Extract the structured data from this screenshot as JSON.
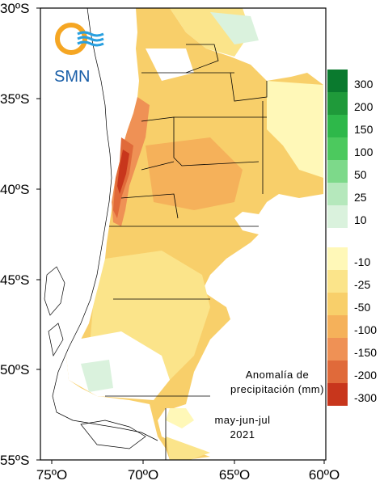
{
  "logo": {
    "text": "SMN"
  },
  "annotation": {
    "line1": "Anomalía de",
    "line2": "precipitación (mm)",
    "line3": "may-jun-jul",
    "line4": "2021"
  },
  "lat_labels": [
    "30ºS",
    "35ºS",
    "40ºS",
    "45ºS",
    "50ºS",
    "55ºS"
  ],
  "lon_labels": [
    "75ºO",
    "70ºO",
    "65ºO",
    "60ºO"
  ],
  "legend": {
    "positive": [
      {
        "label": "300",
        "color": "#0a7a2e"
      },
      {
        "label": "200",
        "color": "#1f9a3a"
      },
      {
        "label": "150",
        "color": "#2eb84a"
      },
      {
        "label": "100",
        "color": "#4cc95e"
      },
      {
        "label": "50",
        "color": "#7dd98a"
      },
      {
        "label": "25",
        "color": "#b5e8bc"
      },
      {
        "label": "10",
        "color": "#daf2dd"
      }
    ],
    "negative": [
      {
        "label": "-10",
        "color": "#fff8b8"
      },
      {
        "label": "-25",
        "color": "#fbe48a"
      },
      {
        "label": "-50",
        "color": "#f8cf6a"
      },
      {
        "label": "-100",
        "color": "#f5b15a"
      },
      {
        "label": "-150",
        "color": "#ef9155"
      },
      {
        "label": "-200",
        "color": "#e06a3a"
      },
      {
        "label": "-300",
        "color": "#c8361c"
      }
    ]
  }
}
